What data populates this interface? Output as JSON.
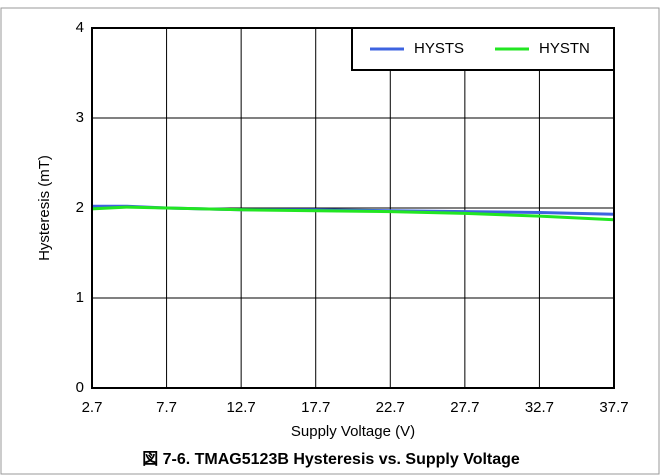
{
  "chart_data": {
    "type": "line",
    "caption": "図 7-6. TMAG5123B Hysteresis vs. Supply Voltage",
    "xlabel": "Supply Voltage (V)",
    "ylabel": "Hysteresis (mT)",
    "x": [
      2.7,
      5,
      7.7,
      12.7,
      17.7,
      22.7,
      27.7,
      32.7,
      37.7
    ],
    "series": [
      {
        "name": "HYSTS",
        "color": "#3d63e0",
        "values": [
          2.02,
          2.02,
          2.0,
          1.98,
          1.98,
          1.97,
          1.96,
          1.95,
          1.93
        ]
      },
      {
        "name": "HYSTN",
        "color": "#22e622",
        "values": [
          1.99,
          2.01,
          2.0,
          1.98,
          1.97,
          1.96,
          1.94,
          1.91,
          1.87
        ]
      }
    ],
    "xlim": [
      2.7,
      37.7
    ],
    "xticks": [
      2.7,
      7.7,
      12.7,
      17.7,
      22.7,
      27.7,
      32.7,
      37.7
    ],
    "ylim": [
      0,
      4
    ],
    "yticks": [
      0,
      1,
      2,
      3,
      4
    ],
    "grid": true,
    "legend": "upper right"
  }
}
